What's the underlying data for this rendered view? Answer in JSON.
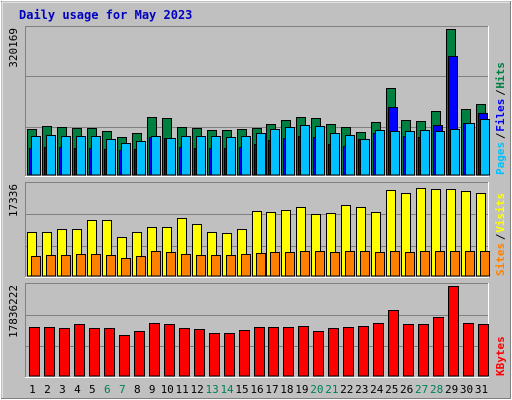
{
  "chart_data": {
    "type": "bar",
    "title": "Daily usage for May 2023",
    "categories": [
      "1",
      "2",
      "3",
      "4",
      "5",
      "6",
      "7",
      "8",
      "9",
      "10",
      "11",
      "12",
      "13",
      "14",
      "15",
      "16",
      "17",
      "18",
      "19",
      "20",
      "21",
      "22",
      "23",
      "24",
      "25",
      "26",
      "27",
      "28",
      "29",
      "30",
      "31"
    ],
    "weekend_days": [
      "6",
      "7",
      "13",
      "14",
      "20",
      "21",
      "27",
      "28"
    ],
    "panels": [
      {
        "name": "hits-files-pages",
        "max_label": "320169",
        "ymax": 320169,
        "legend": [
          {
            "text": "Pages",
            "color": "#00c0ff"
          },
          {
            "text": "Files",
            "color": "#0000ff"
          },
          {
            "text": "Hits",
            "color": "#008040"
          }
        ],
        "series": [
          {
            "name": "Hits",
            "color": "#008040",
            "values": [
              101000,
              107000,
              105000,
              104000,
              104000,
              96000,
              84000,
              92000,
              127000,
              125000,
              105000,
              102000,
              99000,
              99000,
              100000,
              104000,
              112000,
              120000,
              128000,
              126000,
              111000,
              105000,
              94000,
              116000,
              191000,
              121000,
              119000,
              140000,
              320169,
              144000,
              156000
            ]
          },
          {
            "name": "Files",
            "color": "#0000ff",
            "values": [
              60000,
              62000,
              61000,
              60000,
              60000,
              58000,
              55000,
              58000,
              84000,
              82000,
              62000,
              60000,
              60000,
              60000,
              62000,
              68000,
              77000,
              82000,
              86000,
              84000,
              68000,
              64000,
              80000,
              93000,
              150000,
              86000,
              84000,
              110000,
              260000,
              115000,
              135000
            ]
          },
          {
            "name": "Pages",
            "color": "#00c0ff",
            "values": [
              85000,
              88000,
              86000,
              85000,
              85000,
              80000,
              70000,
              75000,
              85000,
              82000,
              85000,
              85000,
              85000,
              84000,
              85000,
              92000,
              100000,
              105000,
              110000,
              108000,
              92000,
              88000,
              80000,
              98000,
              96000,
              97000,
              98000,
              96000,
              100000,
              113000,
              122000
            ]
          }
        ]
      },
      {
        "name": "visits-sites",
        "max_label": "17336",
        "ymax": 17336,
        "legend": [
          {
            "text": "Sites",
            "color": "#ff8000"
          },
          {
            "text": "Visits",
            "color": "#ffff00"
          }
        ],
        "series": [
          {
            "name": "Visits",
            "color": "#ffff00",
            "values": [
              8300,
              8300,
              8900,
              8900,
              10700,
              10600,
              7400,
              8300,
              9400,
              9300,
              11100,
              9900,
              8300,
              8100,
              9000,
              12300,
              12200,
              12500,
              13100,
              11900,
              12000,
              13500,
              13200,
              12100,
              16400,
              15800,
              16800,
              16600,
              16600,
              16100,
              15900
            ]
          },
          {
            "name": "Sites",
            "color": "#ff8000",
            "values": [
              3900,
              4000,
              4000,
              4100,
              4100,
              4000,
              3500,
              3900,
              4800,
              4600,
              4100,
              4000,
              4000,
              4000,
              4100,
              4400,
              4500,
              4600,
              4800,
              4800,
              4600,
              4700,
              4700,
              4600,
              4800,
              4600,
              4700,
              4700,
              4800,
              4700,
              4700
            ]
          }
        ]
      },
      {
        "name": "kbytes",
        "max_label": "17836222",
        "ymax": 17836222,
        "legend": [
          {
            "text": "KBytes",
            "color": "#ff0000"
          }
        ],
        "series": [
          {
            "name": "KBytes",
            "color": "#ff0000",
            "values": [
              9700000,
              9700000,
              9600000,
              10300000,
              9600000,
              9600000,
              8200000,
              8900000,
              10500000,
              10300000,
              9600000,
              9300000,
              8500000,
              8500000,
              9100000,
              9700000,
              9800000,
              9800000,
              9900000,
              8900000,
              9600000,
              9800000,
              9900000,
              10500000,
              13000000,
              10400000,
              10300000,
              11600000,
              17836222,
              10600000,
              10400000
            ]
          }
        ]
      }
    ]
  }
}
